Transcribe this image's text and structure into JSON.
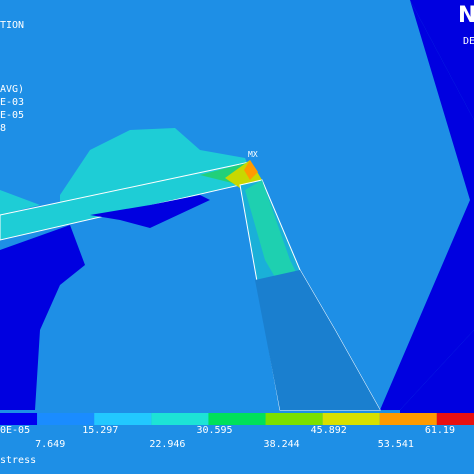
{
  "header": {
    "title": "TION",
    "right": "DE",
    "logo": "N"
  },
  "info": [
    "AVG)",
    "E-03",
    "E-05",
    "8"
  ],
  "max_label": "MX",
  "legend": {
    "colors": [
      "#0000f0",
      "#1a8cff",
      "#22c8ff",
      "#1de3d6",
      "#00e05a",
      "#7ae000",
      "#d8e000",
      "#ff9a00",
      "#e81010"
    ],
    "top_labels": [
      "0E-05",
      "15.297",
      "30.595",
      "45.892",
      "61.19"
    ],
    "bottom_labels": [
      "7.649",
      "22.946",
      "38.244",
      "53.541"
    ]
  },
  "footer": "stress"
}
